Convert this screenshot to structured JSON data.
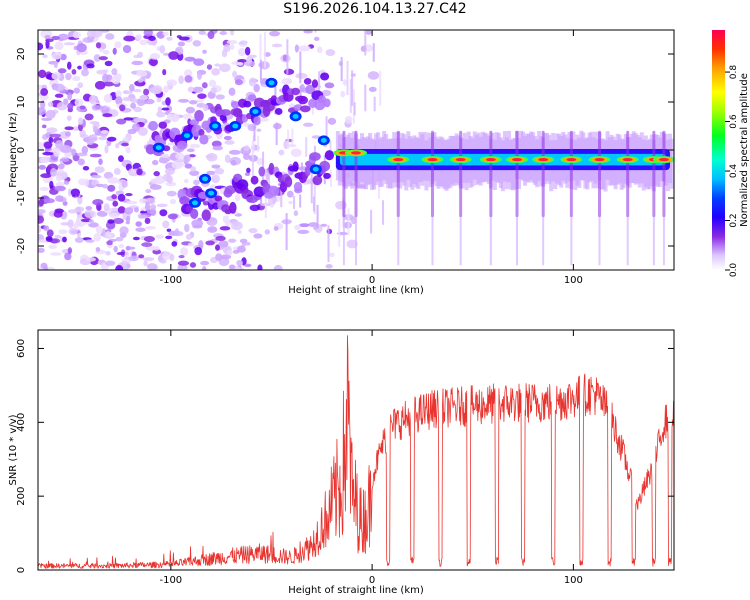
{
  "title": "S196.2026.104.13.27.C42",
  "chart_data": [
    {
      "type": "heatmap",
      "xlabel": "Height of straight line (km)",
      "ylabel": "Frequency (Hz)",
      "xlim": [
        -166,
        150
      ],
      "ylim": [
        -25,
        25
      ],
      "xticks": [
        -100,
        0,
        100
      ],
      "yticks": [
        -20,
        -10,
        0,
        10,
        20
      ],
      "colorbar": {
        "label": "Normalized spectral amplitude",
        "range": [
          0,
          0.97
        ],
        "ticks": [
          0.0,
          0.2,
          0.4,
          0.6,
          0.8
        ],
        "colors": [
          "#ffffff",
          "#d9bbff",
          "#8a2be2",
          "#3b00ff",
          "#0000ff",
          "#00bfff",
          "#00ffcc",
          "#00ff00",
          "#adff2f",
          "#ffff00",
          "#ffa500",
          "#ff4500",
          "#ff0040"
        ]
      },
      "line_track": {
        "description": "Narrow spectral line near 0 Hz appearing from ~0 km to 150 km",
        "x_start": -18,
        "x_end": 148,
        "frequency_hz": -2,
        "peak_x": [
          -14,
          -8,
          13,
          30,
          44,
          59,
          72,
          85,
          99,
          113,
          127,
          140,
          145
        ]
      }
    },
    {
      "type": "line",
      "xlabel": "Height of straight line (km)",
      "ylabel": "SNR (10 * v/v)",
      "xlim": [
        -166,
        150
      ],
      "ylim": [
        0,
        650
      ],
      "xticks": [
        -100,
        0,
        100
      ],
      "yticks": [
        0,
        200,
        400,
        600
      ],
      "series": [
        {
          "name": "SNR",
          "color": "#e8332e",
          "envelope_x": [
            -166,
            -130,
            -100,
            -85,
            -70,
            -55,
            -40,
            -30,
            -22,
            -15,
            -12,
            -10,
            -5,
            0,
            5,
            10,
            20,
            30,
            50,
            70,
            90,
            110,
            113,
            118,
            125,
            132,
            140,
            145,
            150
          ],
          "envelope_y": [
            15,
            15,
            20,
            35,
            50,
            60,
            45,
            90,
            200,
            350,
            600,
            300,
            180,
            280,
            380,
            440,
            470,
            490,
            500,
            510,
            510,
            540,
            520,
            480,
            350,
            200,
            320,
            450,
            460
          ],
          "dropout_x": [
            8,
            20,
            34,
            48,
            62,
            75,
            90,
            104,
            118,
            130,
            140,
            148
          ]
        }
      ]
    }
  ]
}
